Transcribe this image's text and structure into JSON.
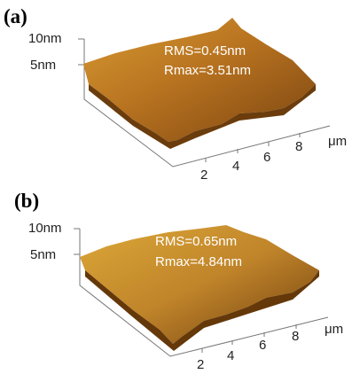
{
  "panels": [
    {
      "label": "(a)",
      "z_ticks": [
        "10nm",
        "5nm"
      ],
      "annotations": [
        "RMS=0.45nm",
        "Rmax=3.51nm"
      ],
      "x_ticks": [
        "2",
        "4",
        "6",
        "8"
      ],
      "x_unit": "μm"
    },
    {
      "label": "(b)",
      "z_ticks": [
        "10nm",
        "5nm"
      ],
      "annotations": [
        "RMS=0.65nm",
        "Rmax=4.84nm"
      ],
      "x_ticks": [
        "2",
        "4",
        "6",
        "8"
      ],
      "x_unit": "μm"
    }
  ]
}
